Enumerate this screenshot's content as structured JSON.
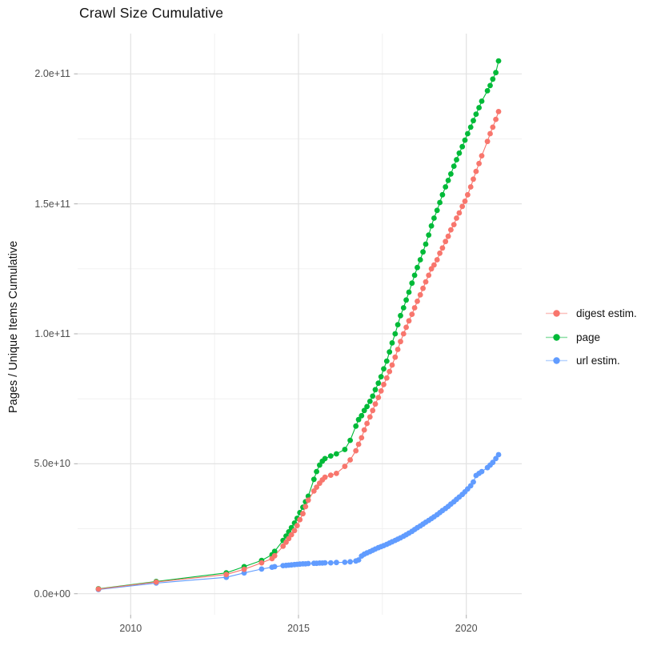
{
  "title": "Crawl Size Cumulative",
  "axes": {
    "y_label": "Pages / Unique Items Cumulative"
  },
  "legend": {
    "items": [
      {
        "label": "digest estim.",
        "color": "#F8766D"
      },
      {
        "label": "page",
        "color": "#00BA38"
      },
      {
        "label": "url estim.",
        "color": "#619CFF"
      }
    ]
  },
  "chart_data": {
    "type": "scatter",
    "title": "Crawl Size Cumulative",
    "xlabel": "",
    "ylabel": "Pages / Unique Items Cumulative",
    "x_unit": "year (decimal)",
    "value_unit": "billions (1e9 items); axis shows scientific notation",
    "grid": "major and minor, light gray on white",
    "legend_position": "right",
    "xlim": [
      2008.4,
      2021.6
    ],
    "ylim_billions": [
      0,
      214
    ],
    "x_ticks": {
      "values": [
        2010,
        2015,
        2020
      ],
      "labels": [
        "2010",
        "2015",
        "2020"
      ],
      "minor": [
        2012.5,
        2017.5
      ]
    },
    "y_ticks": {
      "values_billions": [
        0,
        50,
        100,
        150,
        200
      ],
      "labels": [
        "0.0e+00",
        "5.0e+10",
        "1.0e+11",
        "1.5e+11",
        "2.0e+11"
      ],
      "minor_billions": [
        25,
        75,
        125,
        175
      ]
    },
    "x": [
      2009.04,
      2010.76,
      2012.85,
      2013.38,
      2013.9,
      2014.21,
      2014.29,
      2014.54,
      2014.63,
      2014.71,
      2014.79,
      2014.88,
      2014.96,
      2015.04,
      2015.13,
      2015.21,
      2015.29,
      2015.46,
      2015.54,
      2015.63,
      2015.71,
      2015.79,
      2015.96,
      2016.13,
      2016.38,
      2016.54,
      2016.71,
      2016.79,
      2016.88,
      2016.96,
      2017.04,
      2017.13,
      2017.21,
      2017.29,
      2017.38,
      2017.46,
      2017.54,
      2017.63,
      2017.71,
      2017.79,
      2017.88,
      2017.96,
      2018.04,
      2018.13,
      2018.21,
      2018.29,
      2018.38,
      2018.46,
      2018.54,
      2018.63,
      2018.71,
      2018.79,
      2018.88,
      2018.96,
      2019.04,
      2019.13,
      2019.21,
      2019.29,
      2019.38,
      2019.46,
      2019.54,
      2019.63,
      2019.71,
      2019.79,
      2019.88,
      2019.96,
      2020.04,
      2020.13,
      2020.21,
      2020.29,
      2020.38,
      2020.46,
      2020.63,
      2020.71,
      2020.79,
      2020.88,
      2020.96
    ],
    "series": [
      {
        "name": "digest estim.",
        "color": "#F8766D",
        "values_billions": [
          1.8,
          4.5,
          7.4,
          9.4,
          11.9,
          13.5,
          14.6,
          18.3,
          19.8,
          21.2,
          22.7,
          24.3,
          26.2,
          28.5,
          30.8,
          33.5,
          36.0,
          39.5,
          41.0,
          42.5,
          43.8,
          44.8,
          45.6,
          46.3,
          49.0,
          51.5,
          55.0,
          57.5,
          60.0,
          63.0,
          65.5,
          68.0,
          70.5,
          73.0,
          75.5,
          78.0,
          80.5,
          83.0,
          85.5,
          88.0,
          91.0,
          94.0,
          97.0,
          100.0,
          102.5,
          105.0,
          107.5,
          110.0,
          112.5,
          115.0,
          117.5,
          120.0,
          122.5,
          125.0,
          126.5,
          128.5,
          131.0,
          133.0,
          135.5,
          137.5,
          140.0,
          142.0,
          144.5,
          146.5,
          149.0,
          151.0,
          153.5,
          156.5,
          159.5,
          162.5,
          165.5,
          168.5,
          174.0,
          177.0,
          179.5,
          182.5,
          185.5
        ]
      },
      {
        "name": "page",
        "color": "#00BA38",
        "values_billions": [
          1.9,
          4.7,
          8.0,
          10.4,
          12.8,
          15.0,
          16.3,
          20.5,
          22.2,
          23.8,
          25.4,
          27.2,
          29.0,
          31.2,
          33.3,
          35.4,
          37.5,
          44.0,
          47.0,
          49.5,
          51.0,
          52.0,
          53.0,
          53.8,
          55.5,
          59.0,
          64.5,
          67.0,
          68.5,
          70.5,
          72.0,
          74.0,
          76.0,
          78.5,
          81.0,
          83.5,
          86.5,
          89.5,
          93.0,
          96.5,
          100.0,
          103.5,
          107.0,
          110.0,
          113.0,
          116.0,
          119.5,
          122.5,
          125.5,
          128.5,
          131.5,
          134.5,
          138.0,
          141.5,
          144.5,
          147.5,
          150.5,
          153.5,
          156.5,
          159.0,
          161.5,
          164.5,
          167.0,
          169.5,
          172.0,
          174.5,
          177.0,
          179.5,
          182.0,
          184.5,
          187.0,
          189.5,
          193.5,
          195.5,
          198.0,
          200.5,
          205.0
        ]
      },
      {
        "name": "url estim.",
        "color": "#619CFF",
        "values_billions": [
          1.6,
          4.1,
          6.3,
          8.0,
          9.5,
          10.2,
          10.4,
          10.8,
          10.9,
          11.0,
          11.1,
          11.2,
          11.3,
          11.4,
          11.5,
          11.5,
          11.6,
          11.7,
          11.7,
          11.8,
          11.8,
          11.9,
          11.9,
          12.0,
          12.1,
          12.3,
          12.6,
          13.0,
          14.5,
          15.2,
          15.7,
          16.2,
          16.7,
          17.2,
          17.7,
          18.1,
          18.5,
          19.0,
          19.5,
          20.0,
          20.5,
          21.0,
          21.5,
          22.1,
          22.7,
          23.3,
          24.0,
          24.7,
          25.4,
          26.1,
          26.8,
          27.5,
          28.2,
          28.9,
          29.6,
          30.4,
          31.2,
          32.0,
          32.8,
          33.6,
          34.5,
          35.4,
          36.3,
          37.2,
          38.2,
          39.2,
          40.3,
          41.5,
          43.0,
          45.5,
          46.3,
          47.0,
          48.5,
          49.5,
          50.5,
          52.0,
          53.5
        ]
      }
    ]
  }
}
